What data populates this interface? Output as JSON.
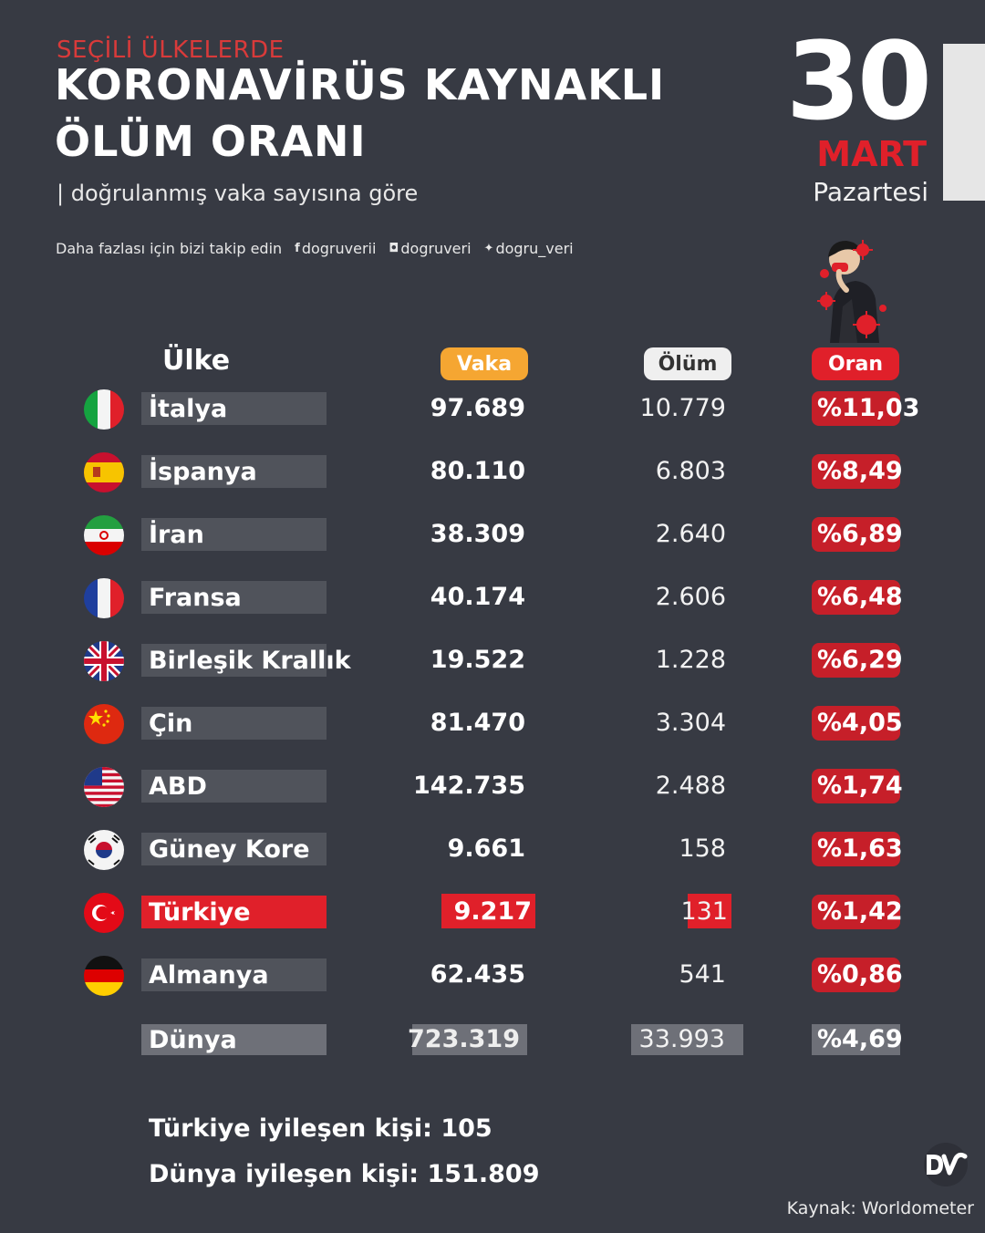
{
  "header": {
    "kicker": "SEÇİLİ ÜLKELERDE",
    "title_line1": "KORONAVİRÜS KAYNAKLI",
    "title_line2": "ÖLÜM ORANI",
    "subtitle": "| doğrulanmış vaka sayısına göre",
    "follow_text": "Daha fazlası için bizi takip edin",
    "socials": [
      {
        "icon": "facebook-icon",
        "glyph": "f",
        "handle": "dogruverii"
      },
      {
        "icon": "instagram-icon",
        "glyph": "◘",
        "handle": "dogruveri"
      },
      {
        "icon": "twitter-icon",
        "glyph": "✦",
        "handle": "dogru_veri"
      }
    ]
  },
  "date": {
    "day": "30",
    "month": "MART",
    "weekday": "Pazartesi"
  },
  "columns": {
    "country": "Ülke",
    "cases": "Vaka",
    "deaths": "Ölüm",
    "rate": "Oran"
  },
  "rows": [
    {
      "country": "İtalya",
      "flag": "italy-flag-icon",
      "cases": "97.689",
      "deaths": "10.779",
      "rate": "%11,03"
    },
    {
      "country": "İspanya",
      "flag": "spain-flag-icon",
      "cases": "80.110",
      "deaths": "6.803",
      "rate": "%8,49"
    },
    {
      "country": "İran",
      "flag": "iran-flag-icon",
      "cases": "38.309",
      "deaths": "2.640",
      "rate": "%6,89"
    },
    {
      "country": "Fransa",
      "flag": "france-flag-icon",
      "cases": "40.174",
      "deaths": "2.606",
      "rate": "%6,48"
    },
    {
      "country": "Birleşik Krallık",
      "flag": "uk-flag-icon",
      "cases": "19.522",
      "deaths": "1.228",
      "rate": "%6,29"
    },
    {
      "country": "Çin",
      "flag": "china-flag-icon",
      "cases": "81.470",
      "deaths": "3.304",
      "rate": "%4,05"
    },
    {
      "country": "ABD",
      "flag": "usa-flag-icon",
      "cases": "142.735",
      "deaths": "2.488",
      "rate": "%1,74"
    },
    {
      "country": "Güney Kore",
      "flag": "south-korea-flag-icon",
      "cases": "9.661",
      "deaths": "158",
      "rate": "%1,63"
    },
    {
      "country": "Türkiye",
      "flag": "turkey-flag-icon",
      "cases": "9.217",
      "deaths": "131",
      "rate": "%1,42"
    },
    {
      "country": "Almanya",
      "flag": "germany-flag-icon",
      "cases": "62.435",
      "deaths": "541",
      "rate": "%0,86"
    }
  ],
  "world": {
    "country": "Dünya",
    "cases": "723.319",
    "deaths": "33.993",
    "rate": "%4,69"
  },
  "footer": {
    "turkey_recovered_label": "Türkiye iyileşen kişi:",
    "turkey_recovered_value": "105",
    "world_recovered_label": "Dünya iyileşen kişi:",
    "world_recovered_value": "151.809",
    "source": "Kaynak: Worldometer"
  },
  "colors": {
    "background": "#373a43",
    "accent_red": "#e0202a",
    "cases_orange": "#f5a632"
  }
}
